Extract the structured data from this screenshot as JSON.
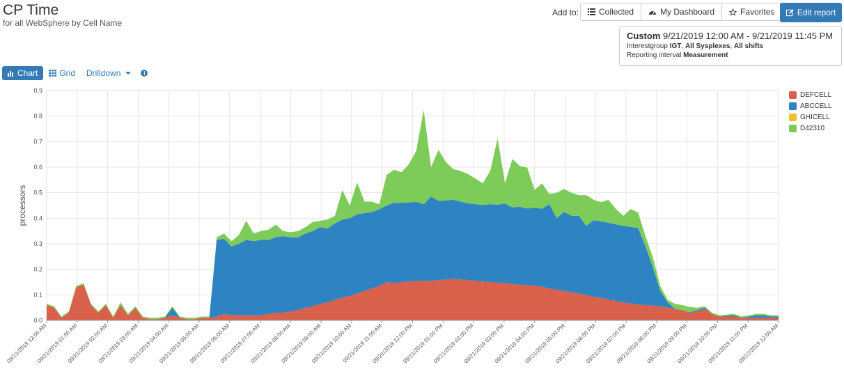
{
  "header": {
    "title": "CP Time",
    "subtitle": "for all WebSphere by Cell Name"
  },
  "toolbar": {
    "add_to_label": "Add to:",
    "collected_label": "Collected",
    "dashboard_label": "My Dashboard",
    "favorites_label": "Favorites",
    "edit_label": "Edit report"
  },
  "info": {
    "custom_label": "Custom",
    "range": "9/21/2019 12:00 AM - 9/21/2019 11:45 PM",
    "interest_prefix": "Interestgroup",
    "interest_group": "IGT",
    "sysplexes": "All Sysplexes",
    "shifts": "All shifts",
    "interval_prefix": "Reporting interval",
    "interval": "Measurement"
  },
  "tabs": {
    "chart": "Chart",
    "grid": "Grid",
    "drilldown": "Drilldown"
  },
  "colors": {
    "DEFCELL": "#d9604a",
    "ABCCELL": "#2e83c2",
    "GHICELL": "#f0c030",
    "D42310": "#7dcc5a",
    "accent": "#337ab7"
  },
  "chart_data": {
    "type": "area",
    "stacked": true,
    "ylabel": "processors",
    "ylim": [
      0,
      0.9
    ],
    "yticks": [
      "0.0",
      "0.1",
      "0.2",
      "0.3",
      "0.4",
      "0.5",
      "0.6",
      "0.7",
      "0.8",
      "0.9"
    ],
    "xtick_labels": [
      "09/21/2019 12:00 AM",
      "09/21/2019 01:00 AM",
      "09/21/2019 02:00 AM",
      "09/21/2019 03:00 AM",
      "09/21/2019 04:00 AM",
      "09/21/2019 05:00 AM",
      "09/21/2019 06:00 AM",
      "09/21/2019 07:00 AM",
      "09/21/2019 08:00 AM",
      "09/21/2019 09:00 AM",
      "09/21/2019 10:00 AM",
      "09/21/2019 11:00 AM",
      "09/21/2019 12:00 PM",
      "09/21/2019 01:00 PM",
      "09/21/2019 02:00 PM",
      "09/21/2019 03:00 PM",
      "09/21/2019 04:00 PM",
      "09/21/2019 05:00 PM",
      "09/21/2019 06:00 PM",
      "09/21/2019 07:00 PM",
      "09/21/2019 08:00 PM",
      "09/21/2019 09:00 PM",
      "09/21/2019 10:00 PM",
      "09/21/2019 11:00 PM",
      "09/22/2019 12:00 AM"
    ],
    "legend_position": "right",
    "series": [
      {
        "name": "DEFCELL",
        "values": [
          0.06,
          0.05,
          0.01,
          0.03,
          0.13,
          0.14,
          0.06,
          0.03,
          0.06,
          0.01,
          0.06,
          0.02,
          0.05,
          0.01,
          0.005,
          0.005,
          0.01,
          0.02,
          0.01,
          0.005,
          0.005,
          0.01,
          0.01,
          0.015,
          0.025,
          0.02,
          0.02,
          0.02,
          0.02,
          0.02,
          0.025,
          0.03,
          0.03,
          0.035,
          0.04,
          0.05,
          0.055,
          0.065,
          0.07,
          0.08,
          0.09,
          0.095,
          0.105,
          0.115,
          0.125,
          0.135,
          0.15,
          0.145,
          0.15,
          0.152,
          0.154,
          0.155,
          0.155,
          0.158,
          0.16,
          0.162,
          0.16,
          0.158,
          0.155,
          0.152,
          0.15,
          0.148,
          0.147,
          0.142,
          0.14,
          0.138,
          0.136,
          0.132,
          0.125,
          0.12,
          0.115,
          0.11,
          0.105,
          0.1,
          0.092,
          0.088,
          0.082,
          0.076,
          0.07,
          0.066,
          0.062,
          0.06,
          0.058,
          0.055,
          0.05,
          0.045,
          0.04,
          0.03,
          0.035,
          0.045,
          0.025,
          0.015,
          0.015,
          0.015,
          0.01,
          0.01,
          0.01,
          0.01,
          0.01,
          0.01
        ]
      },
      {
        "name": "ABCCELL",
        "values": [
          0,
          0,
          0,
          0,
          0,
          0,
          0,
          0,
          0,
          0,
          0,
          0,
          0,
          0,
          0,
          0,
          0,
          0.03,
          0,
          0,
          0,
          0,
          0,
          0.3,
          0.295,
          0.27,
          0.28,
          0.295,
          0.29,
          0.295,
          0.29,
          0.295,
          0.3,
          0.29,
          0.285,
          0.29,
          0.295,
          0.3,
          0.29,
          0.3,
          0.305,
          0.305,
          0.31,
          0.305,
          0.3,
          0.3,
          0.3,
          0.315,
          0.31,
          0.31,
          0.31,
          0.3,
          0.33,
          0.31,
          0.31,
          0.31,
          0.305,
          0.3,
          0.3,
          0.3,
          0.305,
          0.305,
          0.31,
          0.3,
          0.305,
          0.3,
          0.305,
          0.305,
          0.33,
          0.28,
          0.31,
          0.3,
          0.305,
          0.27,
          0.3,
          0.3,
          0.3,
          0.3,
          0.3,
          0.3,
          0.3,
          0.23,
          0.15,
          0.06,
          0.02,
          0,
          0,
          0.002,
          0.005,
          0.005,
          0,
          0,
          0.003,
          0.005,
          0,
          0.005,
          0.01,
          0.01,
          0.005,
          0.005
        ]
      },
      {
        "name": "GHICELL",
        "values": [
          0,
          0,
          0,
          0,
          0,
          0,
          0,
          0,
          0,
          0,
          0,
          0,
          0,
          0,
          0,
          0,
          0,
          0,
          0,
          0,
          0,
          0,
          0,
          0,
          0,
          0,
          0,
          0,
          0,
          0,
          0,
          0,
          0,
          0,
          0,
          0,
          0,
          0,
          0,
          0,
          0,
          0,
          0,
          0,
          0,
          0,
          0,
          0,
          0,
          0,
          0,
          0,
          0,
          0,
          0,
          0,
          0,
          0,
          0,
          0,
          0,
          0,
          0,
          0,
          0,
          0,
          0,
          0,
          0,
          0,
          0,
          0,
          0,
          0,
          0,
          0,
          0,
          0,
          0,
          0,
          0,
          0,
          0,
          0,
          0,
          0,
          0,
          0,
          0,
          0,
          0,
          0,
          0,
          0,
          0,
          0,
          0,
          0,
          0,
          0
        ]
      },
      {
        "name": "D42310",
        "values": [
          0.005,
          0.005,
          0.005,
          0.005,
          0.005,
          0.005,
          0.005,
          0.005,
          0.005,
          0.005,
          0.01,
          0.005,
          0.005,
          0.005,
          0.005,
          0.005,
          0.005,
          0.005,
          0.005,
          0.005,
          0.005,
          0.005,
          0.005,
          0.01,
          0.02,
          0.02,
          0.035,
          0.075,
          0.03,
          0.035,
          0.04,
          0.05,
          0.02,
          0.02,
          0.025,
          0.025,
          0.035,
          0.025,
          0.035,
          0.03,
          0.115,
          0.05,
          0.125,
          0.045,
          0.04,
          0.02,
          0.12,
          0.13,
          0.12,
          0.15,
          0.2,
          0.37,
          0.115,
          0.2,
          0.15,
          0.12,
          0.12,
          0.115,
          0.1,
          0.085,
          0.13,
          0.26,
          0.08,
          0.19,
          0.16,
          0.16,
          0.07,
          0.1,
          0.04,
          0.1,
          0.09,
          0.09,
          0.08,
          0.12,
          0.08,
          0.075,
          0.09,
          0.06,
          0.04,
          0.07,
          0.06,
          0.04,
          0.04,
          0.02,
          0.01,
          0.02,
          0.02,
          0.02,
          0.01,
          0.005,
          0.005,
          0.005,
          0.005,
          0.005,
          0.005,
          0.005,
          0.005,
          0.005,
          0.005,
          0.005
        ]
      }
    ]
  }
}
